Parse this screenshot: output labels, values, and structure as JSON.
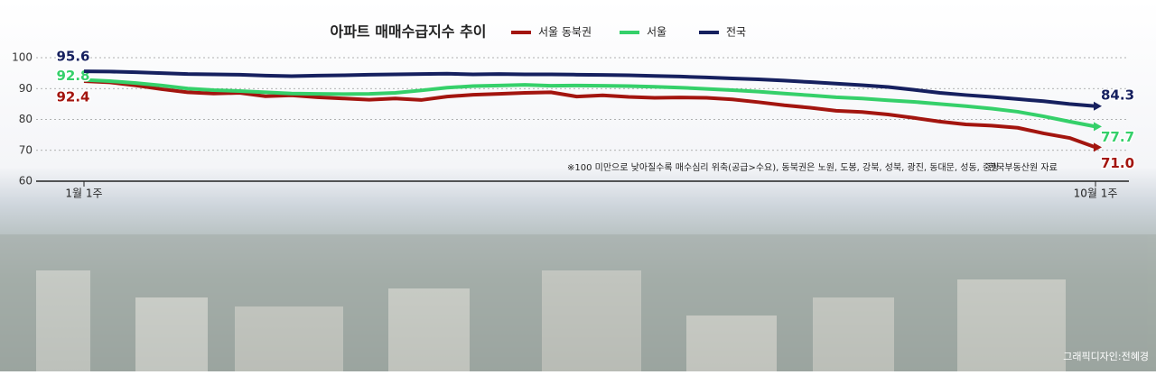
{
  "chart_data": {
    "type": "line",
    "title": "아파트 매매수급지수 추이",
    "categories": [
      "1월 1주",
      null,
      null,
      null,
      null,
      null,
      null,
      null,
      null,
      null,
      null,
      null,
      null,
      null,
      null,
      null,
      null,
      null,
      null,
      null,
      null,
      null,
      null,
      null,
      null,
      null,
      null,
      null,
      null,
      null,
      null,
      null,
      null,
      null,
      null,
      null,
      null,
      null,
      null,
      "10월 1주"
    ],
    "series": [
      {
        "name": "서울 동북권",
        "color": "#a3150f",
        "values": [
          92.4,
          92.0,
          91.0,
          89.8,
          88.8,
          88.4,
          88.6,
          87.5,
          87.8,
          87.2,
          86.8,
          86.4,
          86.8,
          86.3,
          87.4,
          88.0,
          88.3,
          88.6,
          88.8,
          87.4,
          87.8,
          87.3,
          87.0,
          87.1,
          87.0,
          86.5,
          85.6,
          84.6,
          83.8,
          82.8,
          82.4,
          81.6,
          80.5,
          79.3,
          78.4,
          78.0,
          77.3,
          75.5,
          74.0,
          71.0
        ],
        "value_labels": [
          "92.4",
          null,
          null,
          null,
          null,
          null,
          null,
          null,
          null,
          null,
          null,
          null,
          null,
          null,
          null,
          null,
          null,
          null,
          null,
          null,
          null,
          null,
          null,
          null,
          null,
          null,
          null,
          null,
          null,
          null,
          null,
          null,
          null,
          null,
          null,
          null,
          null,
          null,
          null,
          "71.0"
        ]
      },
      {
        "name": "서울",
        "color": "#35d06a",
        "values": [
          92.8,
          92.4,
          91.8,
          91.0,
          90.0,
          89.5,
          89.2,
          88.8,
          88.4,
          88.3,
          88.2,
          88.3,
          88.6,
          89.4,
          90.3,
          90.8,
          91.0,
          91.2,
          90.9,
          91.0,
          90.9,
          90.8,
          90.6,
          90.3,
          89.9,
          89.5,
          89.0,
          88.4,
          87.8,
          87.2,
          86.8,
          86.2,
          85.7,
          85.0,
          84.3,
          83.5,
          82.5,
          81.0,
          79.3,
          77.7
        ],
        "value_labels": [
          "92.8",
          null,
          null,
          null,
          null,
          null,
          null,
          null,
          null,
          null,
          null,
          null,
          null,
          null,
          null,
          null,
          null,
          null,
          null,
          null,
          null,
          null,
          null,
          null,
          null,
          null,
          null,
          null,
          null,
          null,
          null,
          null,
          null,
          null,
          null,
          null,
          null,
          null,
          null,
          "77.7"
        ]
      },
      {
        "name": "전국",
        "color": "#16205f",
        "values": [
          95.6,
          95.5,
          95.3,
          95.0,
          94.7,
          94.6,
          94.5,
          94.2,
          94.0,
          94.2,
          94.3,
          94.5,
          94.6,
          94.7,
          94.8,
          94.6,
          94.7,
          94.6,
          94.6,
          94.5,
          94.4,
          94.3,
          94.1,
          93.9,
          93.6,
          93.3,
          93.0,
          92.6,
          92.1,
          91.6,
          91.1,
          90.5,
          89.6,
          88.6,
          87.9,
          87.3,
          86.6,
          85.9,
          85.0,
          84.3
        ],
        "value_labels": [
          "95.6",
          null,
          null,
          null,
          null,
          null,
          null,
          null,
          null,
          null,
          null,
          null,
          null,
          null,
          null,
          null,
          null,
          null,
          null,
          null,
          null,
          null,
          null,
          null,
          null,
          null,
          null,
          null,
          null,
          null,
          null,
          null,
          null,
          null,
          null,
          null,
          null,
          null,
          null,
          "84.3"
        ]
      }
    ],
    "ylim": [
      60,
      100
    ],
    "yticks": [
      60,
      70,
      80,
      90,
      100
    ],
    "grid": true,
    "note": "※100 미만으로 낮아질수록 매수심리 위축(공급>수요), 동북권은 노원, 도봉, 강북, 성북, 광진, 동대문, 성동, 중랑",
    "source": "한국부동산원 자료",
    "credit": "그래픽디자인:전혜경"
  }
}
